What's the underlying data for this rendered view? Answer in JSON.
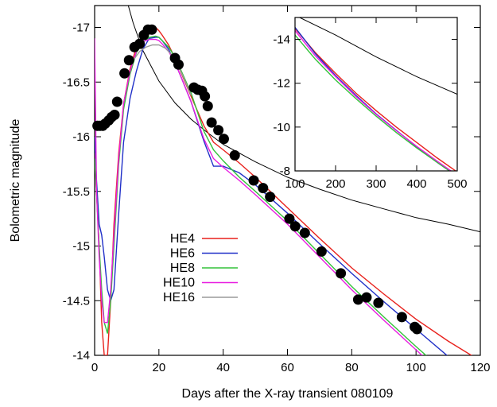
{
  "chart_data": [
    {
      "type": "line",
      "xlabel": "Days after the X-ray transient 080109",
      "ylabel": "Bolometric magnitude",
      "xlim": [
        0,
        120
      ],
      "ylim": [
        -14,
        -17.2
      ],
      "y_axis_inverted": true,
      "x_ticks": [
        "0",
        "20",
        "40",
        "60",
        "80",
        "100",
        "120"
      ],
      "y_ticks": [
        "-14",
        "-14.5",
        "-15",
        "-15.5",
        "-16",
        "-16.5",
        "-17"
      ],
      "x_tick_values": [
        0,
        20,
        40,
        60,
        80,
        100,
        120
      ],
      "y_tick_values": [
        -14,
        -14.5,
        -15,
        -15.5,
        -16,
        -16.5,
        -17
      ],
      "grid": false,
      "legend_position": "bottom-left",
      "observed_points": {
        "marker": "filled-circle",
        "color": "#000000",
        "x": [
          0.9,
          1.7,
          2.5,
          3.3,
          4.4,
          5.3,
          6.2,
          7.0,
          9.3,
          10.7,
          12.4,
          14.0,
          15.3,
          16.6,
          17.8,
          25.0,
          26.1,
          30.9,
          32.1,
          33.4,
          34.3,
          35.2,
          36.4,
          38.5,
          40.2,
          43.6,
          49.5,
          52.4,
          54.6,
          60.6,
          62.4,
          65.4,
          70.6,
          76.6,
          82.0,
          84.6,
          88.3,
          95.6,
          99.6,
          100.3
        ],
        "y": [
          -16.1,
          -16.1,
          -16.1,
          -16.12,
          -16.15,
          -16.18,
          -16.2,
          -16.32,
          -16.58,
          -16.7,
          -16.82,
          -16.85,
          -16.93,
          -16.98,
          -16.98,
          -16.72,
          -16.66,
          -16.45,
          -16.43,
          -16.42,
          -16.37,
          -16.28,
          -16.13,
          -16.06,
          -15.98,
          -15.83,
          -15.6,
          -15.53,
          -15.45,
          -15.25,
          -15.18,
          -15.12,
          -14.95,
          -14.75,
          -14.51,
          -14.53,
          -14.48,
          -14.35,
          -14.26,
          -14.24
        ]
      },
      "power_law_curve": {
        "color": "#000000",
        "x": [
          10,
          12,
          15,
          20,
          25,
          30,
          35,
          40,
          50,
          60,
          70,
          80,
          90,
          100,
          110,
          120
        ],
        "y": [
          -17.25,
          -17.04,
          -16.79,
          -16.51,
          -16.31,
          -16.16,
          -16.04,
          -15.93,
          -15.77,
          -15.63,
          -15.52,
          -15.42,
          -15.34,
          -15.26,
          -15.2,
          -15.13
        ]
      },
      "series": [
        {
          "name": "HE4",
          "color": "#e8211c",
          "x": [
            0,
            0.6,
            1.4,
            2.2,
            3.0,
            4.0,
            5.0,
            6.0,
            7.5,
            9.0,
            11.0,
            13.0,
            15.0,
            17.0,
            19.0,
            20.0,
            21.0,
            23.0,
            25.0,
            27.0,
            30.0,
            34.0,
            37.0,
            40.0,
            45.0,
            50.0,
            60.0,
            70.0,
            80.0,
            90.0,
            100.0,
            110.0,
            120.0
          ],
          "y": [
            -15.85,
            -15.5,
            -15.0,
            -14.3,
            -14.0,
            -14.0,
            -14.5,
            -15.2,
            -15.85,
            -16.3,
            -16.62,
            -16.82,
            -16.93,
            -16.99,
            -17.0,
            -16.97,
            -16.93,
            -16.84,
            -16.72,
            -16.58,
            -16.37,
            -16.1,
            -15.95,
            -15.88,
            -15.76,
            -15.63,
            -15.35,
            -15.07,
            -14.8,
            -14.56,
            -14.33,
            -14.13,
            -13.95
          ]
        },
        {
          "name": "HE6",
          "color": "#2030c8",
          "x": [
            0,
            0.6,
            1.4,
            2.2,
            3.0,
            4.0,
            5.0,
            6.0,
            7.5,
            9.0,
            11.0,
            13.0,
            15.0,
            17.0,
            19.0,
            20.0,
            21.0,
            23.0,
            25.0,
            27.0,
            30.0,
            34.0,
            37.0,
            40.0,
            45.0,
            50.0,
            60.0,
            70.0,
            80.0,
            90.0,
            100.0,
            110.0,
            120.0
          ],
          "y": [
            -16.0,
            -15.6,
            -15.2,
            -15.1,
            -14.9,
            -14.6,
            -14.5,
            -14.6,
            -15.3,
            -15.95,
            -16.35,
            -16.6,
            -16.8,
            -16.9,
            -16.91,
            -16.91,
            -16.88,
            -16.8,
            -16.68,
            -16.54,
            -16.32,
            -15.96,
            -15.73,
            -15.73,
            -15.67,
            -15.56,
            -15.3,
            -15.02,
            -14.75,
            -14.49,
            -14.24,
            -13.99,
            -13.75
          ]
        },
        {
          "name": "HE8",
          "color": "#33c23a",
          "x": [
            0,
            0.6,
            1.4,
            2.2,
            3.0,
            4.0,
            5.0,
            6.0,
            7.5,
            9.0,
            11.0,
            13.0,
            15.0,
            17.0,
            19.0,
            20.0,
            21.0,
            23.0,
            25.0,
            27.0,
            30.0,
            34.0,
            37.0,
            40.0,
            45.0,
            50.0,
            60.0,
            70.0,
            80.0,
            90.0,
            100.0,
            110.0,
            120.0
          ],
          "y": [
            -15.8,
            -15.5,
            -15.0,
            -14.6,
            -14.3,
            -14.2,
            -14.5,
            -15.0,
            -15.75,
            -16.25,
            -16.57,
            -16.77,
            -16.86,
            -16.91,
            -16.92,
            -16.91,
            -16.88,
            -16.82,
            -16.73,
            -16.6,
            -16.4,
            -16.05,
            -15.88,
            -15.78,
            -15.63,
            -15.5,
            -15.23,
            -14.93,
            -14.63,
            -14.35,
            -14.08,
            -13.82,
            -13.6
          ]
        },
        {
          "name": "HE10",
          "color": "#e81ee0",
          "x": [
            0,
            0.6,
            1.4,
            2.2,
            3.0,
            4.0,
            5.0,
            6.0,
            7.5,
            9.0,
            11.0,
            13.0,
            15.0,
            17.0,
            19.0,
            20.0,
            21.0,
            23.0,
            25.0,
            27.0,
            30.0,
            34.0,
            37.0,
            40.0,
            45.0,
            50.0,
            60.0,
            70.0,
            80.0,
            90.0,
            100.0,
            110.0,
            120.0
          ],
          "y": [
            -16.9,
            -15.5,
            -14.9,
            -14.5,
            -14.3,
            -14.3,
            -14.6,
            -15.1,
            -15.8,
            -16.3,
            -16.6,
            -16.78,
            -16.87,
            -16.89,
            -16.89,
            -16.88,
            -16.85,
            -16.78,
            -16.68,
            -16.54,
            -16.32,
            -15.98,
            -15.8,
            -15.72,
            -15.6,
            -15.47,
            -15.2,
            -14.9,
            -14.6,
            -14.32,
            -14.05,
            -13.78,
            -13.55
          ]
        },
        {
          "name": "HE16",
          "color": "#9a9a9a",
          "x": [
            12.0,
            14.0,
            16.0,
            18.0,
            20.0,
            22.0,
            24.0,
            26.0,
            28.0,
            30.0
          ],
          "y": [
            -16.7,
            -16.78,
            -16.82,
            -16.84,
            -16.84,
            -16.81,
            -16.75,
            -16.65,
            -16.52,
            -16.38
          ]
        }
      ]
    },
    {
      "type": "line",
      "title": "",
      "xlabel": "",
      "ylabel": "",
      "xlim": [
        100,
        500
      ],
      "ylim": [
        -8,
        -15
      ],
      "y_axis_inverted": true,
      "x_ticks": [
        "100",
        "200",
        "300",
        "400",
        "500"
      ],
      "y_ticks": [
        "-8",
        "-10",
        "-12",
        "-14"
      ],
      "x_tick_values": [
        100,
        200,
        300,
        400,
        500
      ],
      "y_tick_values": [
        -8,
        -10,
        -12,
        -14
      ],
      "grid": false,
      "series": [
        {
          "name": "",
          "color": "#e8211c",
          "x": [
            100,
            150,
            200,
            250,
            300,
            350,
            400,
            450,
            500
          ],
          "y": [
            -14.5,
            -13.4,
            -12.45,
            -11.55,
            -10.75,
            -10.0,
            -9.3,
            -8.6,
            -7.95
          ]
        },
        {
          "name": "",
          "color": "#2030c8",
          "x": [
            100,
            150,
            200,
            250,
            300,
            350,
            400,
            450,
            500
          ],
          "y": [
            -14.55,
            -13.35,
            -12.35,
            -11.45,
            -10.6,
            -9.85,
            -9.1,
            -8.4,
            -7.75
          ]
        },
        {
          "name": "",
          "color": "#33c23a",
          "x": [
            100,
            150,
            200,
            250,
            300,
            350,
            400,
            450,
            500
          ],
          "y": [
            -14.2,
            -13.1,
            -12.15,
            -11.3,
            -10.5,
            -9.75,
            -9.05,
            -8.4,
            -7.75
          ]
        },
        {
          "name": "",
          "color": "#e81ee0",
          "x": [
            100,
            150,
            200,
            250,
            300,
            350,
            400,
            450,
            500
          ],
          "y": [
            -14.4,
            -13.25,
            -12.3,
            -11.4,
            -10.58,
            -9.83,
            -9.12,
            -8.45,
            -7.8
          ]
        },
        {
          "name": "",
          "color": "#000000",
          "x": [
            100,
            200,
            300,
            400,
            500
          ],
          "y": [
            -15.1,
            -14.2,
            -13.2,
            -12.3,
            -11.5
          ]
        }
      ]
    }
  ]
}
